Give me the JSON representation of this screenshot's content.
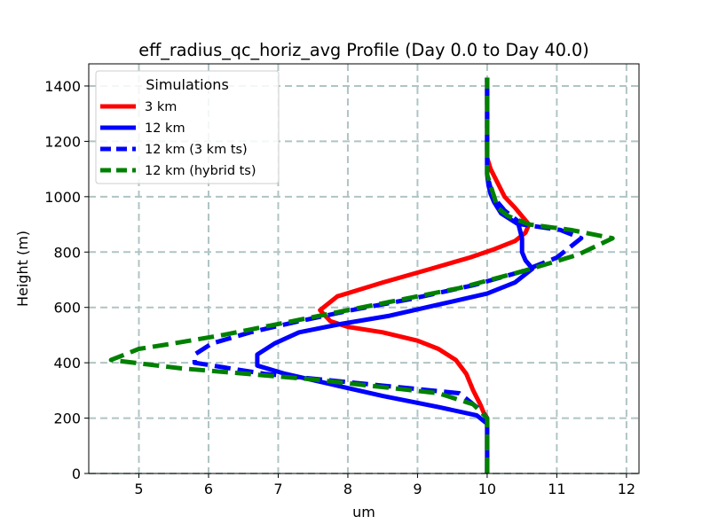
{
  "chart_data": {
    "type": "line",
    "title": "eff_radius_qc_horiz_avg Profile (Day 0.0 to Day 40.0)",
    "xlabel": "um",
    "ylabel": "Height (m)",
    "xlim": [
      4.28,
      12.18
    ],
    "ylim": [
      0,
      1480
    ],
    "xticks": [
      5,
      6,
      7,
      8,
      9,
      10,
      11,
      12
    ],
    "yticks": [
      0,
      200,
      400,
      600,
      800,
      1000,
      1200,
      1400
    ],
    "grid": true,
    "legend": {
      "title": "Simulations",
      "placement": "top-left"
    },
    "series": [
      {
        "name": "3 km",
        "color": "#ff0000",
        "dash": "solid",
        "points": [
          [
            10,
            0
          ],
          [
            10,
            200
          ],
          [
            9.95,
            220
          ],
          [
            9.9,
            250
          ],
          [
            9.8,
            300
          ],
          [
            9.7,
            360
          ],
          [
            9.55,
            410
          ],
          [
            9.3,
            450
          ],
          [
            9.0,
            480
          ],
          [
            8.5,
            510
          ],
          [
            8.0,
            530
          ],
          [
            7.75,
            550
          ],
          [
            7.6,
            590
          ],
          [
            7.85,
            640
          ],
          [
            8.5,
            690
          ],
          [
            9.2,
            740
          ],
          [
            9.75,
            780
          ],
          [
            10.1,
            810
          ],
          [
            10.4,
            840
          ],
          [
            10.55,
            870
          ],
          [
            10.6,
            900
          ],
          [
            10.4,
            960
          ],
          [
            10.25,
            1000
          ],
          [
            10.15,
            1050
          ],
          [
            10.05,
            1100
          ],
          [
            10,
            1140
          ],
          [
            10,
            1200
          ],
          [
            10,
            1300
          ],
          [
            10,
            1430
          ]
        ]
      },
      {
        "name": "12 km",
        "color": "#0000ff",
        "dash": "solid",
        "points": [
          [
            10,
            0
          ],
          [
            10,
            180
          ],
          [
            9.85,
            210
          ],
          [
            9.3,
            240
          ],
          [
            8.5,
            280
          ],
          [
            7.8,
            320
          ],
          [
            7.1,
            360
          ],
          [
            6.7,
            390
          ],
          [
            6.7,
            430
          ],
          [
            6.95,
            470
          ],
          [
            7.3,
            510
          ],
          [
            7.9,
            540
          ],
          [
            8.6,
            570
          ],
          [
            9.3,
            610
          ],
          [
            10.0,
            650
          ],
          [
            10.4,
            690
          ],
          [
            10.65,
            740
          ],
          [
            10.55,
            770
          ],
          [
            10.5,
            800
          ],
          [
            10.5,
            850
          ],
          [
            10.45,
            900
          ],
          [
            10.2,
            940
          ],
          [
            10.1,
            980
          ],
          [
            10.05,
            1010
          ],
          [
            10.02,
            1040
          ],
          [
            10,
            1080
          ],
          [
            10,
            1200
          ],
          [
            10,
            1300
          ],
          [
            10,
            1430
          ]
        ]
      },
      {
        "name": "12 km (3 km ts)",
        "color": "#0000ff",
        "dash": "dashed",
        "points": [
          [
            10,
            0
          ],
          [
            10,
            200
          ],
          [
            9.85,
            240
          ],
          [
            9.6,
            290
          ],
          [
            8.0,
            330
          ],
          [
            6.8,
            360
          ],
          [
            5.8,
            400
          ],
          [
            5.8,
            430
          ],
          [
            6.05,
            470
          ],
          [
            6.6,
            510
          ],
          [
            7.3,
            550
          ],
          [
            8.05,
            590
          ],
          [
            8.9,
            630
          ],
          [
            9.8,
            680
          ],
          [
            10.5,
            730
          ],
          [
            11.0,
            780
          ],
          [
            11.35,
            850
          ],
          [
            11.05,
            880
          ],
          [
            10.5,
            900
          ],
          [
            10.25,
            950
          ],
          [
            10.15,
            980
          ],
          [
            10.1,
            1000
          ],
          [
            10.05,
            1030
          ],
          [
            10,
            1080
          ],
          [
            10,
            1200
          ],
          [
            10,
            1300
          ],
          [
            10,
            1430
          ]
        ]
      },
      {
        "name": "12 km (hybrid ts)",
        "color": "#008000",
        "dash": "dashed",
        "points": [
          [
            10,
            0
          ],
          [
            10,
            200
          ],
          [
            9.8,
            250
          ],
          [
            9.3,
            290
          ],
          [
            7.5,
            340
          ],
          [
            5.6,
            380
          ],
          [
            4.6,
            410
          ],
          [
            5.0,
            450
          ],
          [
            5.5,
            470
          ],
          [
            6.2,
            500
          ],
          [
            7.0,
            540
          ],
          [
            7.8,
            580
          ],
          [
            8.6,
            620
          ],
          [
            9.6,
            670
          ],
          [
            10.5,
            730
          ],
          [
            11.3,
            790
          ],
          [
            11.8,
            850
          ],
          [
            11.2,
            880
          ],
          [
            10.6,
            900
          ],
          [
            10.3,
            930
          ],
          [
            10.15,
            960
          ],
          [
            10.1,
            1000
          ],
          [
            10.05,
            1040
          ],
          [
            10,
            1080
          ],
          [
            10,
            1200
          ],
          [
            10,
            1300
          ],
          [
            10,
            1430
          ]
        ]
      }
    ]
  }
}
